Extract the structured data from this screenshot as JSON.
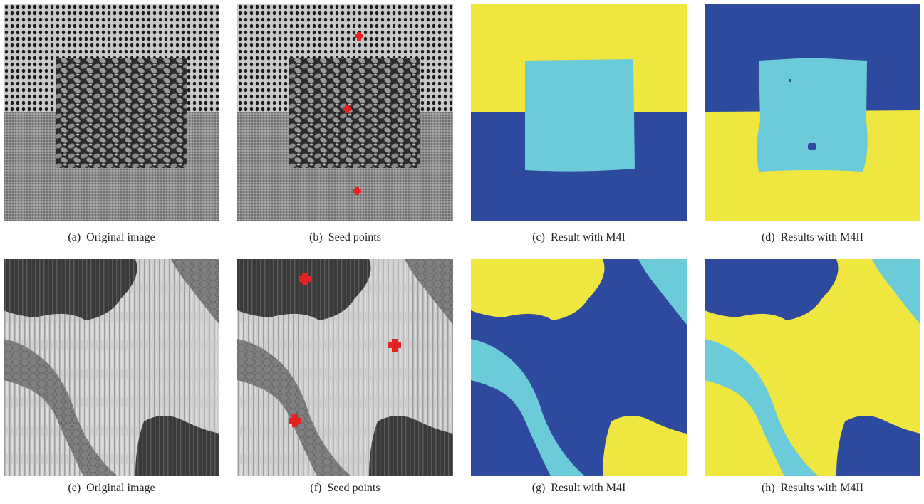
{
  "figure": {
    "panels": [
      {
        "label": "(a)",
        "caption": "Original image"
      },
      {
        "label": "(b)",
        "caption": "Seed points"
      },
      {
        "label": "(c)",
        "caption": "Result with M4I"
      },
      {
        "label": "(d)",
        "caption": "Results with M4II"
      },
      {
        "label": "(e)",
        "caption": "Original image"
      },
      {
        "label": "(f)",
        "caption": "Seed points"
      },
      {
        "label": "(g)",
        "caption": "Result with M4I"
      },
      {
        "label": "(h)",
        "caption": "Results with M4II"
      }
    ]
  }
}
